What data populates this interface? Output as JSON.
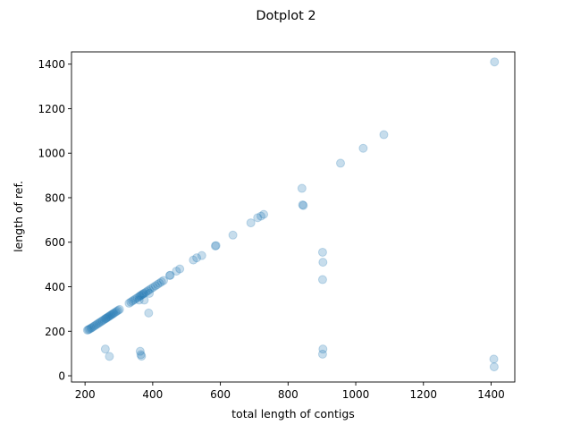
{
  "chart_data": {
    "type": "scatter",
    "title": "Dotplot 2",
    "xlabel": "total length of contigs",
    "ylabel": "length of ref.",
    "xlim": [
      160,
      1470
    ],
    "ylim": [
      -28,
      1455
    ],
    "xticks": [
      200,
      400,
      600,
      800,
      1000,
      1200,
      1400
    ],
    "yticks": [
      0,
      200,
      400,
      600,
      800,
      1000,
      1200,
      1400
    ],
    "grid": false,
    "point_color": "#1f77b4",
    "point_alpha": 0.25,
    "points": [
      [
        207,
        205
      ],
      [
        210,
        207
      ],
      [
        213,
        210
      ],
      [
        217,
        213
      ],
      [
        220,
        216
      ],
      [
        224,
        220
      ],
      [
        228,
        224
      ],
      [
        232,
        228
      ],
      [
        236,
        232
      ],
      [
        240,
        236
      ],
      [
        244,
        240
      ],
      [
        248,
        244
      ],
      [
        252,
        248
      ],
      [
        256,
        252
      ],
      [
        260,
        256
      ],
      [
        262,
        258
      ],
      [
        265,
        261
      ],
      [
        268,
        264
      ],
      [
        271,
        267
      ],
      [
        274,
        270
      ],
      [
        277,
        273
      ],
      [
        280,
        276
      ],
      [
        283,
        279
      ],
      [
        286,
        282
      ],
      [
        290,
        286
      ],
      [
        294,
        290
      ],
      [
        298,
        294
      ],
      [
        302,
        298
      ],
      [
        330,
        326
      ],
      [
        335,
        331
      ],
      [
        340,
        336
      ],
      [
        345,
        341
      ],
      [
        350,
        346
      ],
      [
        355,
        351
      ],
      [
        360,
        356
      ],
      [
        363,
        359
      ],
      [
        366,
        362
      ],
      [
        369,
        365
      ],
      [
        372,
        368
      ],
      [
        375,
        371
      ],
      [
        380,
        376
      ],
      [
        385,
        381
      ],
      [
        390,
        386
      ],
      [
        396,
        392
      ],
      [
        402,
        398
      ],
      [
        408,
        404
      ],
      [
        414,
        410
      ],
      [
        420,
        416
      ],
      [
        426,
        422
      ],
      [
        432,
        428
      ],
      [
        450,
        450
      ],
      [
        452,
        452
      ],
      [
        470,
        470
      ],
      [
        480,
        480
      ],
      [
        520,
        520
      ],
      [
        530,
        530
      ],
      [
        545,
        540
      ],
      [
        585,
        583
      ],
      [
        587,
        585
      ],
      [
        637,
        632
      ],
      [
        690,
        687
      ],
      [
        710,
        710
      ],
      [
        720,
        717
      ],
      [
        728,
        725
      ],
      [
        841,
        842
      ],
      [
        843,
        768
      ],
      [
        845,
        765
      ],
      [
        955,
        955
      ],
      [
        1022,
        1022
      ],
      [
        1083,
        1083
      ],
      [
        1410,
        1410
      ],
      [
        360,
        340
      ],
      [
        375,
        340
      ],
      [
        390,
        370
      ],
      [
        388,
        282
      ],
      [
        260,
        120
      ],
      [
        272,
        87
      ],
      [
        363,
        110
      ],
      [
        365,
        95
      ],
      [
        367,
        88
      ],
      [
        902,
        555
      ],
      [
        903,
        510
      ],
      [
        902,
        432
      ],
      [
        903,
        120
      ],
      [
        902,
        97
      ],
      [
        1408,
        75
      ],
      [
        1409,
        40
      ]
    ]
  }
}
